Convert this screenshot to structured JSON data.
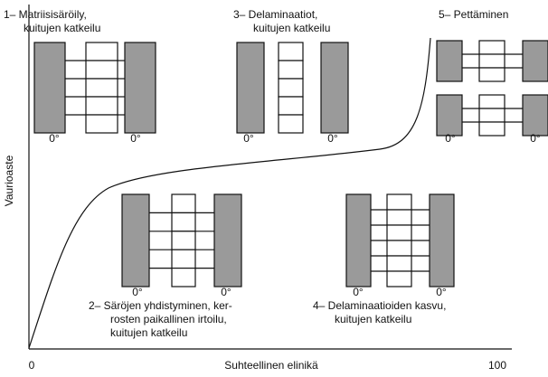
{
  "axes": {
    "y_label": "Vaurioaste",
    "x_label": "Suhteellinen elinikä",
    "x_ticks": [
      "0",
      "100"
    ]
  },
  "stages": [
    {
      "lines": [
        "1– Matriisisäröily,",
        "kuitujen katkeilu"
      ],
      "ply_labels": [
        "0°",
        "0°"
      ]
    },
    {
      "lines": [
        "2– Säröjen yhdistyminen, ker-",
        "rosten paikallinen irtoilu,",
        "kuitujen katkeilu"
      ],
      "ply_labels": [
        "0°",
        "0°"
      ]
    },
    {
      "lines": [
        "3– Delaminaatiot,",
        "kuitujen katkeilu"
      ],
      "ply_labels": [
        "0°",
        "0°"
      ]
    },
    {
      "lines": [
        "4– Delaminaatioiden kasvu,",
        "kuitujen katkeilu"
      ],
      "ply_labels": [
        "0°",
        "0°"
      ]
    },
    {
      "lines": [
        "5– Pettäminen"
      ],
      "ply_labels": [
        "0°",
        "0°"
      ]
    }
  ]
}
